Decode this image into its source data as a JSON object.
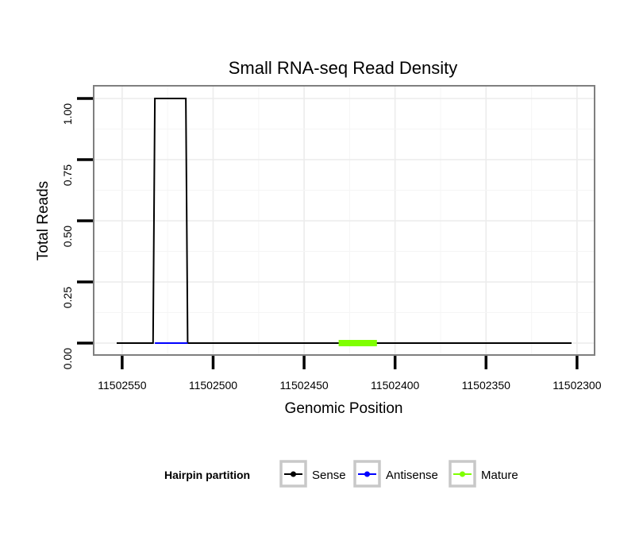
{
  "chart_data": {
    "type": "line",
    "title": "Small RNA-seq Read Density",
    "xlabel": "Genomic Position",
    "ylabel": "Total Reads",
    "x_reversed": true,
    "xlim": [
      11502553,
      11502303
    ],
    "ylim": [
      0,
      1
    ],
    "x_ticks": [
      11502550,
      11502500,
      11502450,
      11502400,
      11502350,
      11502300
    ],
    "x_tick_labels": [
      "11502550",
      "11502500",
      "11502450",
      "11502400",
      "11502350",
      "11502300"
    ],
    "y_ticks": [
      0,
      0.25,
      0.5,
      0.75,
      1
    ],
    "y_tick_labels": [
      "0.00",
      "0.25",
      "0.50",
      "0.75",
      "1.00"
    ],
    "grid": true,
    "series": [
      {
        "name": "Sense",
        "color": "#000000",
        "x": [
          11502553,
          11502533,
          11502532,
          11502515,
          11502514,
          11502303
        ],
        "y": [
          0,
          0,
          1,
          1,
          0,
          0
        ]
      },
      {
        "name": "Antisense",
        "color": "#0000ff",
        "x": [
          11502532,
          11502514
        ],
        "y": [
          0,
          0
        ]
      },
      {
        "name": "Mature",
        "color": "#7fff00",
        "x": [
          11502431,
          11502410
        ],
        "y": [
          0,
          0
        ]
      }
    ],
    "legend": {
      "title": "Hairpin partition",
      "position": "bottom",
      "entries": [
        "Sense",
        "Antisense",
        "Mature"
      ]
    }
  }
}
